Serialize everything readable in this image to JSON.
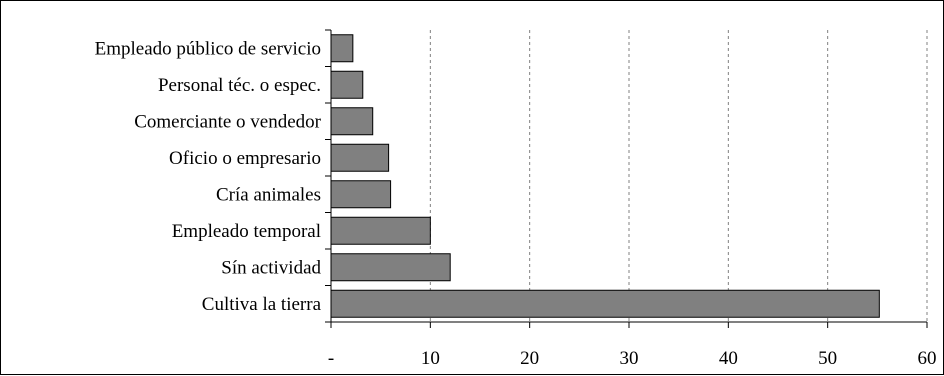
{
  "chart_data": {
    "type": "bar",
    "orientation": "horizontal",
    "categories": [
      "Empleado público de servicio",
      "Personal téc. o espec.",
      "Comerciante o vendedor",
      "Oficio o empresario",
      "Cría animales",
      "Empleado temporal",
      "Sín actividad",
      "Cultiva la tierra"
    ],
    "values": [
      2.2,
      3.2,
      4.2,
      5.8,
      6.0,
      10.0,
      12.0,
      55.2
    ],
    "xlim": [
      0,
      60
    ],
    "xticks": [
      0,
      10,
      20,
      30,
      40,
      50,
      60
    ],
    "xtick_labels": [
      "-",
      "10",
      "20",
      "30",
      "40",
      "50",
      "60"
    ],
    "grid": "vertical dashed",
    "title": "",
    "xlabel": "",
    "ylabel": "",
    "bar_color": "#808080",
    "bar_edge_color": "#000000",
    "grid_color": "#808080"
  }
}
